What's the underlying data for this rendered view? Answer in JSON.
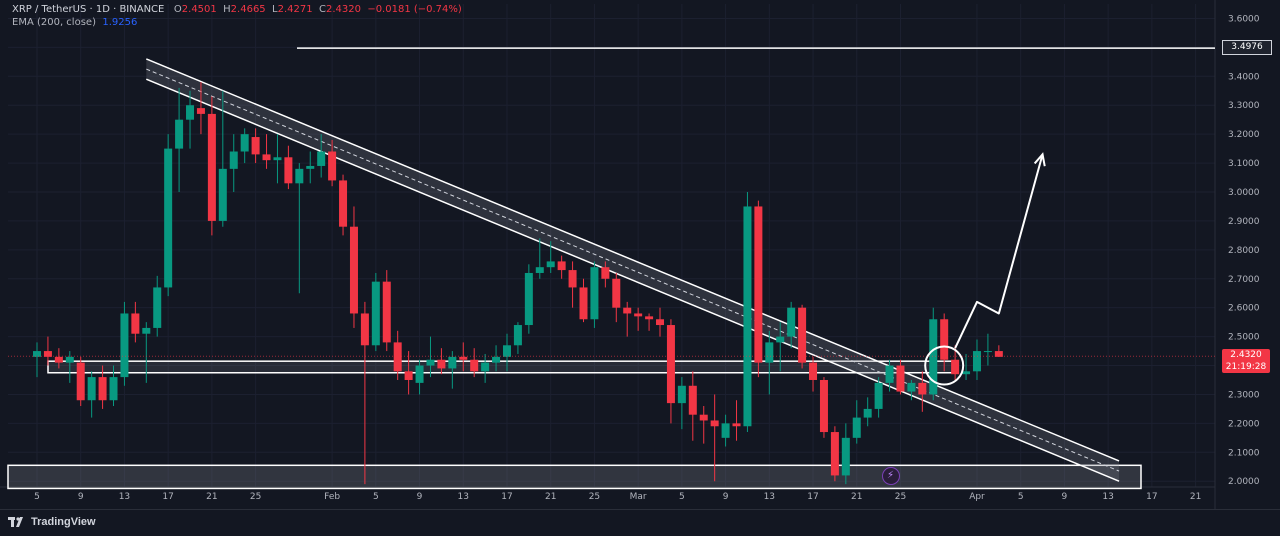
{
  "header": {
    "symbol": "XRP / TetherUS · 1D · BINANCE",
    "open_label": "O",
    "open": "2.4501",
    "high_label": "H",
    "high": "2.4665",
    "low_label": "L",
    "low": "2.4271",
    "close_label": "C",
    "close": "2.4320",
    "change": "−0.0181 (−0.74%)"
  },
  "indicator": {
    "label": "EMA (200, close)",
    "value": "1.9256"
  },
  "price_badge": {
    "price": "2.4320",
    "countdown": "21:19:28"
  },
  "level_label": "3.4976",
  "footer": {
    "brand": "TradingView"
  },
  "colors": {
    "up": "#089981",
    "down": "#f23645",
    "bg": "#131722",
    "text": "#b2b5be"
  },
  "icons": {
    "bolt": "lightning-bolt-icon",
    "logo": "tradingview-logo-icon"
  },
  "chart_data": {
    "type": "candlestick",
    "y_range": [
      1.98,
      3.65
    ],
    "y_ticks": [
      "3.6000",
      "3.5000",
      "3.4000",
      "3.3000",
      "3.2000",
      "3.1000",
      "3.0000",
      "2.9000",
      "2.8000",
      "2.7000",
      "2.6000",
      "2.5000",
      "2.4000",
      "2.3000",
      "2.2000",
      "2.1000",
      "2.0000"
    ],
    "x_ticks": [
      {
        "label": "5",
        "bar": 0
      },
      {
        "label": "9",
        "bar": 4
      },
      {
        "label": "13",
        "bar": 8
      },
      {
        "label": "17",
        "bar": 12
      },
      {
        "label": "21",
        "bar": 16
      },
      {
        "label": "25",
        "bar": 20
      },
      {
        "label": "Feb",
        "bar": 27
      },
      {
        "label": "5",
        "bar": 31
      },
      {
        "label": "9",
        "bar": 35
      },
      {
        "label": "13",
        "bar": 39
      },
      {
        "label": "17",
        "bar": 43
      },
      {
        "label": "21",
        "bar": 47
      },
      {
        "label": "25",
        "bar": 51
      },
      {
        "label": "Mar",
        "bar": 55
      },
      {
        "label": "5",
        "bar": 59
      },
      {
        "label": "9",
        "bar": 63
      },
      {
        "label": "13",
        "bar": 67
      },
      {
        "label": "17",
        "bar": 71
      },
      {
        "label": "21",
        "bar": 75
      },
      {
        "label": "25",
        "bar": 79
      },
      {
        "label": "Apr",
        "bar": 86
      },
      {
        "label": "5",
        "bar": 90
      },
      {
        "label": "9",
        "bar": 94
      },
      {
        "label": "13",
        "bar": 98
      },
      {
        "label": "17",
        "bar": 102
      },
      {
        "label": "21",
        "bar": 106
      }
    ],
    "candles": [
      {
        "o": 2.43,
        "h": 2.48,
        "l": 2.36,
        "c": 2.45
      },
      {
        "o": 2.45,
        "h": 2.5,
        "l": 2.4,
        "c": 2.43
      },
      {
        "o": 2.43,
        "h": 2.46,
        "l": 2.39,
        "c": 2.41
      },
      {
        "o": 2.41,
        "h": 2.45,
        "l": 2.34,
        "c": 2.43
      },
      {
        "o": 2.41,
        "h": 2.43,
        "l": 2.26,
        "c": 2.28
      },
      {
        "o": 2.28,
        "h": 2.38,
        "l": 2.22,
        "c": 2.36
      },
      {
        "o": 2.36,
        "h": 2.4,
        "l": 2.25,
        "c": 2.28
      },
      {
        "o": 2.28,
        "h": 2.4,
        "l": 2.26,
        "c": 2.36
      },
      {
        "o": 2.36,
        "h": 2.62,
        "l": 2.33,
        "c": 2.58
      },
      {
        "o": 2.58,
        "h": 2.62,
        "l": 2.48,
        "c": 2.51
      },
      {
        "o": 2.51,
        "h": 2.55,
        "l": 2.34,
        "c": 2.53
      },
      {
        "o": 2.53,
        "h": 2.71,
        "l": 2.5,
        "c": 2.67
      },
      {
        "o": 2.67,
        "h": 3.2,
        "l": 2.64,
        "c": 3.15
      },
      {
        "o": 3.15,
        "h": 3.36,
        "l": 3.0,
        "c": 3.25
      },
      {
        "o": 3.25,
        "h": 3.35,
        "l": 3.15,
        "c": 3.3
      },
      {
        "o": 3.29,
        "h": 3.38,
        "l": 3.2,
        "c": 3.27
      },
      {
        "o": 3.27,
        "h": 3.33,
        "l": 2.85,
        "c": 2.9
      },
      {
        "o": 2.9,
        "h": 3.35,
        "l": 2.88,
        "c": 3.08
      },
      {
        "o": 3.08,
        "h": 3.2,
        "l": 3.0,
        "c": 3.14
      },
      {
        "o": 3.14,
        "h": 3.22,
        "l": 3.1,
        "c": 3.2
      },
      {
        "o": 3.19,
        "h": 3.22,
        "l": 3.1,
        "c": 3.13
      },
      {
        "o": 3.13,
        "h": 3.2,
        "l": 3.08,
        "c": 3.11
      },
      {
        "o": 3.11,
        "h": 3.2,
        "l": 3.03,
        "c": 3.12
      },
      {
        "o": 3.12,
        "h": 3.16,
        "l": 3.01,
        "c": 3.03
      },
      {
        "o": 3.03,
        "h": 3.1,
        "l": 2.65,
        "c": 3.08
      },
      {
        "o": 3.08,
        "h": 3.14,
        "l": 3.03,
        "c": 3.09
      },
      {
        "o": 3.09,
        "h": 3.2,
        "l": 3.05,
        "c": 3.14
      },
      {
        "o": 3.14,
        "h": 3.18,
        "l": 3.02,
        "c": 3.04
      },
      {
        "o": 3.04,
        "h": 3.06,
        "l": 2.85,
        "c": 2.88
      },
      {
        "o": 2.88,
        "h": 2.95,
        "l": 2.53,
        "c": 2.58
      },
      {
        "o": 2.58,
        "h": 2.62,
        "l": 1.99,
        "c": 2.47
      },
      {
        "o": 2.47,
        "h": 2.72,
        "l": 2.45,
        "c": 2.69
      },
      {
        "o": 2.69,
        "h": 2.73,
        "l": 2.45,
        "c": 2.48
      },
      {
        "o": 2.48,
        "h": 2.52,
        "l": 2.35,
        "c": 2.38
      },
      {
        "o": 2.38,
        "h": 2.45,
        "l": 2.3,
        "c": 2.35
      },
      {
        "o": 2.34,
        "h": 2.42,
        "l": 2.3,
        "c": 2.4
      },
      {
        "o": 2.4,
        "h": 2.5,
        "l": 2.36,
        "c": 2.42
      },
      {
        "o": 2.42,
        "h": 2.46,
        "l": 2.37,
        "c": 2.39
      },
      {
        "o": 2.39,
        "h": 2.45,
        "l": 2.32,
        "c": 2.43
      },
      {
        "o": 2.43,
        "h": 2.48,
        "l": 2.38,
        "c": 2.42
      },
      {
        "o": 2.42,
        "h": 2.46,
        "l": 2.36,
        "c": 2.38
      },
      {
        "o": 2.38,
        "h": 2.44,
        "l": 2.34,
        "c": 2.41
      },
      {
        "o": 2.41,
        "h": 2.47,
        "l": 2.38,
        "c": 2.43
      },
      {
        "o": 2.43,
        "h": 2.51,
        "l": 2.38,
        "c": 2.47
      },
      {
        "o": 2.47,
        "h": 2.55,
        "l": 2.44,
        "c": 2.54
      },
      {
        "o": 2.54,
        "h": 2.75,
        "l": 2.51,
        "c": 2.72
      },
      {
        "o": 2.72,
        "h": 2.84,
        "l": 2.7,
        "c": 2.74
      },
      {
        "o": 2.74,
        "h": 2.83,
        "l": 2.72,
        "c": 2.76
      },
      {
        "o": 2.76,
        "h": 2.78,
        "l": 2.7,
        "c": 2.73
      },
      {
        "o": 2.73,
        "h": 2.76,
        "l": 2.6,
        "c": 2.67
      },
      {
        "o": 2.67,
        "h": 2.7,
        "l": 2.55,
        "c": 2.56
      },
      {
        "o": 2.56,
        "h": 2.76,
        "l": 2.53,
        "c": 2.74
      },
      {
        "o": 2.74,
        "h": 2.76,
        "l": 2.67,
        "c": 2.7
      },
      {
        "o": 2.7,
        "h": 2.72,
        "l": 2.55,
        "c": 2.6
      },
      {
        "o": 2.6,
        "h": 2.62,
        "l": 2.5,
        "c": 2.58
      },
      {
        "o": 2.58,
        "h": 2.6,
        "l": 2.52,
        "c": 2.57
      },
      {
        "o": 2.57,
        "h": 2.58,
        "l": 2.52,
        "c": 2.56
      },
      {
        "o": 2.56,
        "h": 2.6,
        "l": 2.5,
        "c": 2.54
      },
      {
        "o": 2.54,
        "h": 2.56,
        "l": 2.2,
        "c": 2.27
      },
      {
        "o": 2.27,
        "h": 2.36,
        "l": 2.18,
        "c": 2.33
      },
      {
        "o": 2.33,
        "h": 2.38,
        "l": 2.14,
        "c": 2.23
      },
      {
        "o": 2.23,
        "h": 2.26,
        "l": 2.13,
        "c": 2.21
      },
      {
        "o": 2.21,
        "h": 2.3,
        "l": 2.0,
        "c": 2.19
      },
      {
        "o": 2.15,
        "h": 2.23,
        "l": 2.12,
        "c": 2.2
      },
      {
        "o": 2.2,
        "h": 2.28,
        "l": 2.14,
        "c": 2.19
      },
      {
        "o": 2.19,
        "h": 3.0,
        "l": 2.17,
        "c": 2.95
      },
      {
        "o": 2.95,
        "h": 2.97,
        "l": 2.36,
        "c": 2.41
      },
      {
        "o": 2.41,
        "h": 2.52,
        "l": 2.3,
        "c": 2.48
      },
      {
        "o": 2.48,
        "h": 2.55,
        "l": 2.38,
        "c": 2.5
      },
      {
        "o": 2.5,
        "h": 2.62,
        "l": 2.46,
        "c": 2.6
      },
      {
        "o": 2.6,
        "h": 2.61,
        "l": 2.39,
        "c": 2.41
      },
      {
        "o": 2.41,
        "h": 2.43,
        "l": 2.31,
        "c": 2.35
      },
      {
        "o": 2.35,
        "h": 2.36,
        "l": 2.15,
        "c": 2.17
      },
      {
        "o": 2.17,
        "h": 2.19,
        "l": 2.0,
        "c": 2.02
      },
      {
        "o": 2.02,
        "h": 2.2,
        "l": 1.99,
        "c": 2.15
      },
      {
        "o": 2.15,
        "h": 2.28,
        "l": 2.13,
        "c": 2.22
      },
      {
        "o": 2.22,
        "h": 2.29,
        "l": 2.19,
        "c": 2.25
      },
      {
        "o": 2.25,
        "h": 2.36,
        "l": 2.22,
        "c": 2.34
      },
      {
        "o": 2.34,
        "h": 2.42,
        "l": 2.31,
        "c": 2.4
      },
      {
        "o": 2.4,
        "h": 2.42,
        "l": 2.3,
        "c": 2.31
      },
      {
        "o": 2.31,
        "h": 2.35,
        "l": 2.28,
        "c": 2.34
      },
      {
        "o": 2.34,
        "h": 2.38,
        "l": 2.24,
        "c": 2.3
      },
      {
        "o": 2.3,
        "h": 2.6,
        "l": 2.28,
        "c": 2.56
      },
      {
        "o": 2.56,
        "h": 2.58,
        "l": 2.38,
        "c": 2.42
      },
      {
        "o": 2.42,
        "h": 2.47,
        "l": 2.35,
        "c": 2.37
      },
      {
        "o": 2.37,
        "h": 2.44,
        "l": 2.35,
        "c": 2.38
      },
      {
        "o": 2.38,
        "h": 2.49,
        "l": 2.35,
        "c": 2.45
      },
      {
        "o": 2.45,
        "h": 2.51,
        "l": 2.4,
        "c": 2.45
      },
      {
        "o": 2.45,
        "h": 2.47,
        "l": 2.43,
        "c": 2.43
      }
    ],
    "annotations": {
      "horizontal_line": 3.4976,
      "current_price_line": 2.432,
      "support_zone_upper": [
        2.375,
        2.415
      ],
      "support_zone_lower": [
        1.975,
        2.055
      ],
      "channel": {
        "start_bar": 10,
        "end_bar": 99,
        "upper_start": 3.46,
        "upper_end": 2.07,
        "lower_start": 3.39,
        "lower_end": 2.0
      },
      "breakout_circle": {
        "bar": 83,
        "price": 2.4
      },
      "projection_path": [
        [
          84,
          2.46
        ],
        [
          86,
          2.62
        ],
        [
          88,
          2.58
        ],
        [
          92,
          3.13
        ]
      ]
    }
  }
}
